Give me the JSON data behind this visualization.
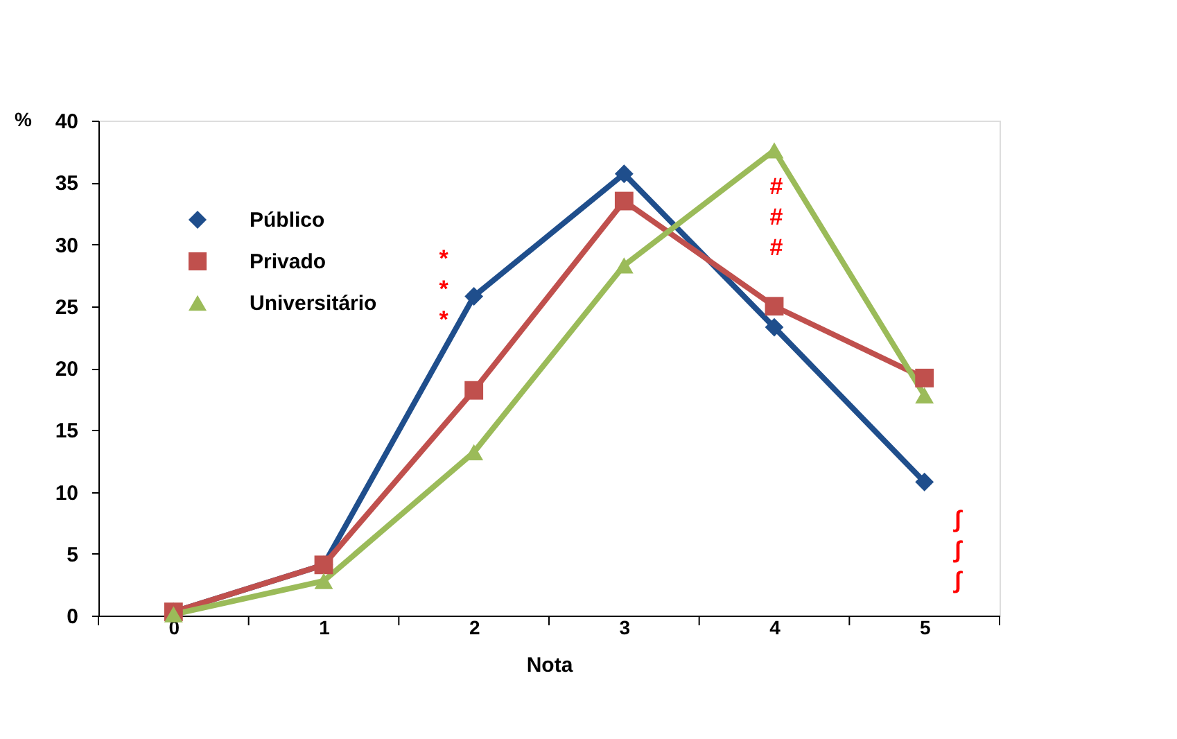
{
  "chart_data": {
    "type": "line",
    "xlabel": "Nota",
    "ylabel": "%",
    "categories": [
      "0",
      "1",
      "2",
      "3",
      "4",
      "5"
    ],
    "ylim": [
      0,
      40
    ],
    "yticks": [
      0,
      5,
      10,
      15,
      20,
      25,
      30,
      35,
      40
    ],
    "grid": false,
    "legend": "top left",
    "line_style": "solid",
    "series": [
      {
        "name": "Público",
        "color": "#1f4e8c",
        "marker": "diamond",
        "values": [
          0.3,
          4.1,
          25.8,
          35.7,
          23.3,
          10.8
        ]
      },
      {
        "name": "Privado",
        "color": "#c0504d",
        "marker": "square",
        "values": [
          0.3,
          4.1,
          18.2,
          33.5,
          25.0,
          19.2
        ]
      },
      {
        "name": "Universitário",
        "color": "#9bbb59",
        "marker": "triangle",
        "values": [
          0.1,
          2.8,
          13.2,
          28.3,
          37.6,
          17.8
        ]
      }
    ],
    "annotations": [
      "***",
      "###",
      "∫∫∫"
    ]
  }
}
